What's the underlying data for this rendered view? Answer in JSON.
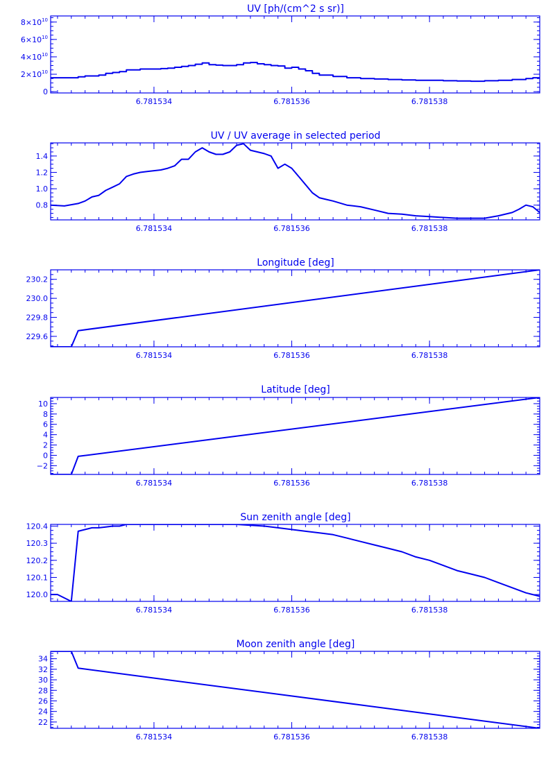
{
  "colors": {
    "line": "#0000ee",
    "background": "#ffffff"
  },
  "x_axis": {
    "range": [
      6.7815325,
      6.7815396
    ],
    "ticks": [
      6.781534,
      6.781536,
      6.781538
    ],
    "tick_labels": [
      "6.781534",
      "6.781536",
      "6.781538"
    ],
    "minor_step": 2e-07
  },
  "chart_data": [
    {
      "type": "line",
      "title": "UV [ph/(cm^2 s sr)]",
      "ylim": [
        -1500000000.0,
        87000000000.0
      ],
      "yticks": [
        0,
        20000000000.0,
        40000000000.0,
        60000000000.0,
        80000000000.0
      ],
      "ytick_labels": [
        {
          "mant": "0",
          "exp": ""
        },
        {
          "mant": "2×10",
          "exp": "10"
        },
        {
          "mant": "4×10",
          "exp": "10"
        },
        {
          "mant": "6×10",
          "exp": "10"
        },
        {
          "mant": "8×10",
          "exp": "10"
        }
      ],
      "yminor": 5000000000.0,
      "step": true,
      "x": [
        6.7815325,
        6.7815328,
        6.7815329,
        6.781533,
        6.7815331,
        6.7815332,
        6.7815333,
        6.7815334,
        6.7815335,
        6.7815336,
        6.7815337,
        6.7815338,
        6.7815339,
        6.781534,
        6.7815341,
        6.7815342,
        6.7815343,
        6.7815344,
        6.7815345,
        6.7815346,
        6.7815347,
        6.7815348,
        6.7815349,
        6.781535,
        6.7815351,
        6.7815352,
        6.7815353,
        6.7815354,
        6.7815355,
        6.7815356,
        6.7815357,
        6.7815358,
        6.7815359,
        6.781536,
        6.7815361,
        6.7815362,
        6.7815363,
        6.7815364,
        6.7815366,
        6.7815368,
        6.781537,
        6.7815372,
        6.7815374,
        6.7815376,
        6.7815378,
        6.781538,
        6.7815382,
        6.7815384,
        6.7815386,
        6.7815388,
        6.781539,
        6.7815392,
        6.7815394,
        6.7815395,
        6.7815396
      ],
      "y": [
        16000000000.0,
        16000000000.0,
        17000000000.0,
        18000000000.0,
        18000000000.0,
        19000000000.0,
        21000000000.0,
        22000000000.0,
        23000000000.0,
        25000000000.0,
        25000000000.0,
        26000000000.0,
        26000000000.0,
        26000000000.0,
        26500000000.0,
        27000000000.0,
        28000000000.0,
        29000000000.0,
        30000000000.0,
        31500000000.0,
        33000000000.0,
        31000000000.0,
        30500000000.0,
        30000000000.0,
        30000000000.0,
        31000000000.0,
        33000000000.0,
        33500000000.0,
        32000000000.0,
        31000000000.0,
        30000000000.0,
        29500000000.0,
        27000000000.0,
        28000000000.0,
        26000000000.0,
        24000000000.0,
        21000000000.0,
        19000000000.0,
        17500000000.0,
        16000000000.0,
        15000000000.0,
        14500000000.0,
        14000000000.0,
        13500000000.0,
        13000000000.0,
        13000000000.0,
        12500000000.0,
        12200000000.0,
        12000000000.0,
        12500000000.0,
        13000000000.0,
        14000000000.0,
        15000000000.0,
        16000000000.0,
        15000000000.0
      ]
    },
    {
      "type": "line",
      "title": "UV / UV average in selected period",
      "ylim": [
        0.62,
        1.56
      ],
      "yticks": [
        0.8,
        1.0,
        1.2,
        1.4
      ],
      "ytick_labels": [
        {
          "mant": "0.8",
          "exp": ""
        },
        {
          "mant": "1.0",
          "exp": ""
        },
        {
          "mant": "1.2",
          "exp": ""
        },
        {
          "mant": "1.4",
          "exp": ""
        }
      ],
      "yminor": 0.05,
      "step": false,
      "x": [
        6.7815325,
        6.7815327,
        6.7815329,
        6.781533,
        6.7815331,
        6.7815332,
        6.7815333,
        6.7815334,
        6.7815335,
        6.7815336,
        6.7815337,
        6.7815338,
        6.7815339,
        6.781534,
        6.7815341,
        6.7815342,
        6.7815343,
        6.7815344,
        6.7815345,
        6.7815346,
        6.7815347,
        6.7815348,
        6.7815349,
        6.781535,
        6.7815351,
        6.7815352,
        6.7815353,
        6.7815354,
        6.7815355,
        6.7815356,
        6.7815357,
        6.7815358,
        6.7815359,
        6.781536,
        6.7815361,
        6.7815362,
        6.7815363,
        6.7815364,
        6.7815365,
        6.7815366,
        6.7815368,
        6.781537,
        6.7815372,
        6.7815374,
        6.7815376,
        6.7815378,
        6.781538,
        6.7815382,
        6.7815384,
        6.7815386,
        6.7815388,
        6.781539,
        6.7815392,
        6.7815393,
        6.7815394,
        6.7815395,
        6.7815396
      ],
      "y": [
        0.8,
        0.79,
        0.82,
        0.85,
        0.9,
        0.92,
        0.98,
        1.02,
        1.06,
        1.15,
        1.18,
        1.2,
        1.21,
        1.22,
        1.23,
        1.25,
        1.28,
        1.36,
        1.36,
        1.45,
        1.5,
        1.45,
        1.42,
        1.42,
        1.45,
        1.53,
        1.55,
        1.47,
        1.45,
        1.43,
        1.4,
        1.25,
        1.3,
        1.25,
        1.15,
        1.05,
        0.95,
        0.89,
        0.87,
        0.85,
        0.8,
        0.78,
        0.74,
        0.7,
        0.69,
        0.67,
        0.66,
        0.65,
        0.64,
        0.64,
        0.64,
        0.67,
        0.71,
        0.75,
        0.8,
        0.78,
        0.71
      ]
    },
    {
      "type": "line",
      "title": "Longitude [deg]",
      "ylim": [
        229.49,
        230.3
      ],
      "yticks": [
        229.6,
        229.8,
        230.0,
        230.2
      ],
      "ytick_labels": [
        {
          "mant": "229.6",
          "exp": ""
        },
        {
          "mant": "229.8",
          "exp": ""
        },
        {
          "mant": "230.0",
          "exp": ""
        },
        {
          "mant": "230.2",
          "exp": ""
        }
      ],
      "yminor": 0.05,
      "step": false,
      "x": [
        6.7815325,
        6.7815328,
        6.7815329,
        6.7815396
      ],
      "y": [
        229.49,
        229.49,
        229.66,
        230.3
      ]
    },
    {
      "type": "line",
      "title": "Latitude [deg]",
      "ylim": [
        -3.7,
        11.2
      ],
      "yticks": [
        -2,
        0,
        2,
        4,
        6,
        8,
        10
      ],
      "ytick_labels": [
        {
          "mant": "−2",
          "exp": ""
        },
        {
          "mant": "0",
          "exp": ""
        },
        {
          "mant": "2",
          "exp": ""
        },
        {
          "mant": "4",
          "exp": ""
        },
        {
          "mant": "6",
          "exp": ""
        },
        {
          "mant": "8",
          "exp": ""
        },
        {
          "mant": "10",
          "exp": ""
        }
      ],
      "yminor": 0.5,
      "step": false,
      "x": [
        6.7815325,
        6.7815328,
        6.7815329,
        6.7815396
      ],
      "y": [
        -3.7,
        -3.7,
        -0.2,
        11.2
      ]
    },
    {
      "type": "line",
      "title": "Sun zenith angle [deg]",
      "ylim": [
        119.96,
        120.41
      ],
      "yticks": [
        120.0,
        120.1,
        120.2,
        120.3,
        120.4
      ],
      "ytick_labels": [
        {
          "mant": "120.0",
          "exp": ""
        },
        {
          "mant": "120.1",
          "exp": ""
        },
        {
          "mant": "120.2",
          "exp": ""
        },
        {
          "mant": "120.3",
          "exp": ""
        },
        {
          "mant": "120.4",
          "exp": ""
        }
      ],
      "yminor": 0.025,
      "step": false,
      "x": [
        6.7815325,
        6.7815326,
        6.7815328,
        6.7815329,
        6.781533,
        6.7815331,
        6.7815332,
        6.7815333,
        6.7815334,
        6.7815335,
        6.7815336,
        6.7815337,
        6.7815338,
        6.781534,
        6.7815342,
        6.7815344,
        6.7815346,
        6.7815348,
        6.781535,
        6.7815352,
        6.7815354,
        6.7815356,
        6.7815358,
        6.781536,
        6.7815362,
        6.7815364,
        6.7815366,
        6.7815368,
        6.781537,
        6.7815372,
        6.7815374,
        6.7815376,
        6.7815378,
        6.781538,
        6.7815382,
        6.7815384,
        6.7815386,
        6.7815388,
        6.781539,
        6.7815392,
        6.7815394,
        6.7815396
      ],
      "y": [
        120.0,
        120.0,
        119.96,
        120.37,
        120.38,
        120.39,
        120.39,
        120.395,
        120.4,
        120.4,
        120.41,
        120.41,
        120.41,
        120.41,
        120.41,
        120.41,
        120.41,
        120.41,
        120.41,
        120.41,
        120.405,
        120.4,
        120.39,
        120.38,
        120.37,
        120.36,
        120.35,
        120.33,
        120.31,
        120.29,
        120.27,
        120.25,
        120.22,
        120.2,
        120.17,
        120.14,
        120.12,
        120.1,
        120.07,
        120.04,
        120.01,
        119.99
      ]
    },
    {
      "type": "line",
      "title": "Moon zenith angle [deg]",
      "ylim": [
        20.8,
        35.4
      ],
      "yticks": [
        22,
        24,
        26,
        28,
        30,
        32,
        34
      ],
      "ytick_labels": [
        {
          "mant": "22",
          "exp": ""
        },
        {
          "mant": "24",
          "exp": ""
        },
        {
          "mant": "26",
          "exp": ""
        },
        {
          "mant": "28",
          "exp": ""
        },
        {
          "mant": "30",
          "exp": ""
        },
        {
          "mant": "32",
          "exp": ""
        },
        {
          "mant": "34",
          "exp": ""
        }
      ],
      "yminor": 0.5,
      "step": false,
      "x": [
        6.7815325,
        6.7815328,
        6.7815329,
        6.7815396
      ],
      "y": [
        35.4,
        35.4,
        32.2,
        20.8
      ]
    }
  ]
}
